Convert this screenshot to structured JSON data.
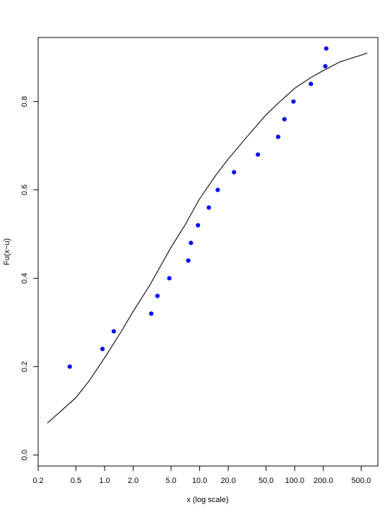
{
  "chart_data": {
    "type": "scatter",
    "title": "",
    "xlabel": "x (log scale)",
    "ylabel": "Fu(x−u)",
    "x_scale": "log",
    "grid": false,
    "legend": "none",
    "xlim": [
      0.2,
      750
    ],
    "ylim": [
      -0.025,
      0.945
    ],
    "x_ticks": [
      0.2,
      0.5,
      1.0,
      2.0,
      5.0,
      10.0,
      20.0,
      50.0,
      100.0,
      200.0,
      500.0
    ],
    "x_tick_labels": [
      "0.2",
      "0.5",
      "1.0",
      "2.0",
      "5.0",
      "10.0",
      "20.0",
      "50.0",
      "100.0",
      "200.0",
      "500.0"
    ],
    "y_ticks": [
      0.0,
      0.2,
      0.4,
      0.6,
      0.8
    ],
    "y_tick_labels": [
      "0.0",
      "0.2",
      "0.4",
      "0.6",
      "0.8"
    ],
    "series": [
      {
        "kind": "points",
        "color": "#0000ff",
        "x": [
          0.43,
          0.95,
          1.25,
          3.1,
          3.6,
          4.8,
          7.6,
          8.1,
          9.6,
          12.5,
          15.5,
          23.0,
          41.0,
          67.0,
          78.0,
          97.0,
          148.0,
          210.0,
          215.0
        ],
        "y": [
          0.2,
          0.24,
          0.28,
          0.32,
          0.36,
          0.4,
          0.44,
          0.48,
          0.52,
          0.56,
          0.6,
          0.64,
          0.68,
          0.72,
          0.76,
          0.8,
          0.84,
          0.88,
          0.92
        ]
      },
      {
        "kind": "line",
        "color": "#000000",
        "x": [
          0.25,
          0.5,
          0.7,
          1.0,
          1.5,
          2.0,
          3.0,
          5.0,
          7.0,
          10.0,
          15.0,
          20.0,
          30.0,
          50.0,
          70.0,
          100.0,
          150.0,
          200.0,
          300.0,
          500.0,
          580.0
        ],
        "y": [
          0.072,
          0.13,
          0.17,
          0.22,
          0.28,
          0.325,
          0.385,
          0.47,
          0.52,
          0.58,
          0.635,
          0.67,
          0.715,
          0.77,
          0.8,
          0.83,
          0.855,
          0.87,
          0.89,
          0.905,
          0.91
        ]
      }
    ]
  }
}
